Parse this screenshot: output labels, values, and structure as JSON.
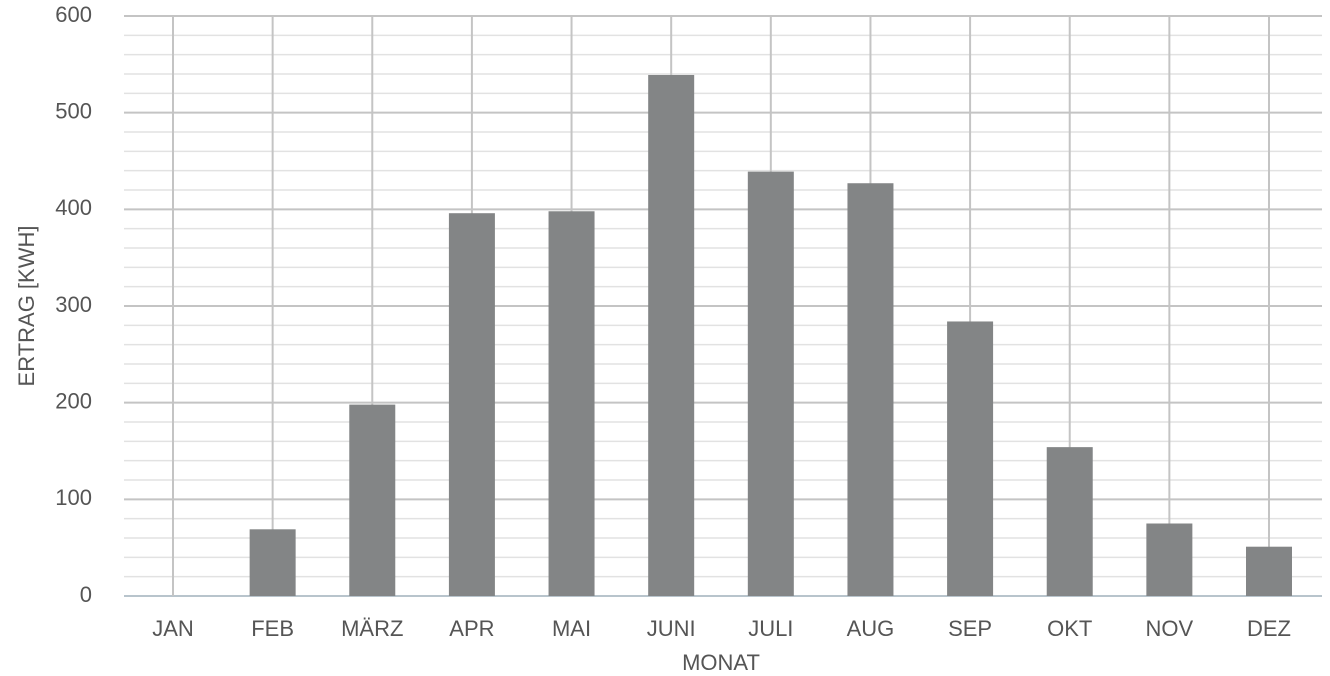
{
  "chart_data": {
    "type": "bar",
    "x_label": "MONAT",
    "y_label": "ERTRAG [KWH]",
    "categories": [
      "JAN",
      "FEB",
      "MÄRZ",
      "APR",
      "MAI",
      "JUNI",
      "JULI",
      "AUG",
      "SEP",
      "OKT",
      "NOV",
      "DEZ"
    ],
    "values": [
      0,
      69,
      198,
      396,
      398,
      539,
      439,
      427,
      284,
      154,
      75,
      51
    ],
    "color": "#838586",
    "ylim": [
      0,
      600
    ],
    "yticks": [
      0,
      100,
      200,
      300,
      400,
      500,
      600
    ],
    "minor_yticks": [
      20,
      40,
      60,
      80,
      120,
      140,
      160,
      180,
      220,
      240,
      260,
      280,
      320,
      340,
      360,
      380,
      420,
      440,
      460,
      480,
      520,
      540,
      560,
      580
    ],
    "grid": true
  }
}
